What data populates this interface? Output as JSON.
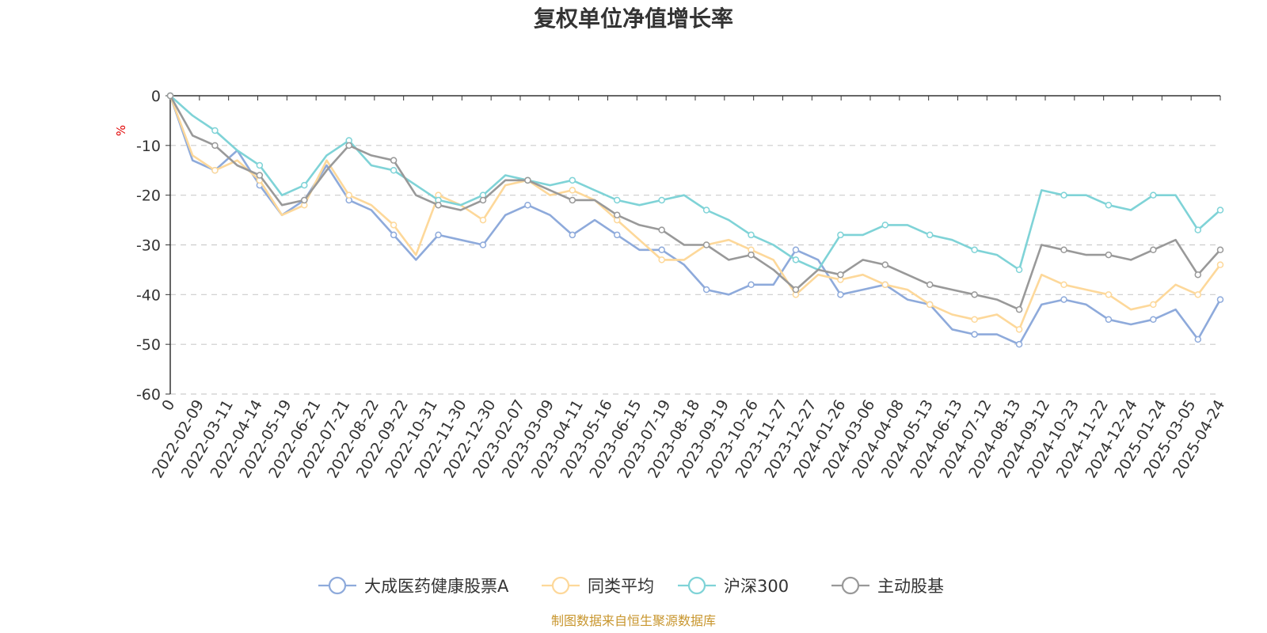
{
  "chart_data": {
    "type": "line",
    "title": "复权单位净值增长率",
    "ylabel": "%",
    "ylim": [
      -60,
      0
    ],
    "yticks": [
      0,
      -10,
      -20,
      -30,
      -40,
      -50,
      -60
    ],
    "x_first_label": "0",
    "x_labels": [
      "2022-02-09",
      "2022-03-11",
      "2022-04-14",
      "2022-05-19",
      "2022-06-21",
      "2022-07-21",
      "2022-08-22",
      "2022-09-22",
      "2022-10-31",
      "2022-11-30",
      "2022-12-30",
      "2023-02-07",
      "2023-03-09",
      "2023-04-11",
      "2023-05-16",
      "2023-06-15",
      "2023-07-19",
      "2023-08-18",
      "2023-09-19",
      "2023-10-26",
      "2023-11-27",
      "2023-12-27",
      "2024-01-26",
      "2024-03-06",
      "2024-04-08",
      "2024-05-13",
      "2024-06-13",
      "2024-07-12",
      "2024-08-13",
      "2024-09-12",
      "2024-10-23",
      "2024-11-22",
      "2024-12-24",
      "2025-01-24",
      "2025-03-05",
      "2025-04-24"
    ],
    "grid": true,
    "legend_position": "bottom",
    "series": [
      {
        "name": "大成医药健康股票A",
        "color": "#8eaadb",
        "values": [
          0,
          -13,
          -15,
          -11,
          -18,
          -24,
          -21,
          -14,
          -21,
          -23,
          -28,
          -33,
          -28,
          -29,
          -30,
          -24,
          -22,
          -24,
          -28,
          -25,
          -28,
          -31,
          -31,
          -34,
          -39,
          -40,
          -38,
          -38,
          -31,
          -33,
          -40,
          -39,
          -38,
          -41,
          -42,
          -47,
          -48,
          -48,
          -50,
          -42,
          -41,
          -42,
          -45,
          -46,
          -45,
          -43,
          -49,
          -41
        ]
      },
      {
        "name": "同类平均",
        "color": "#fdd89a",
        "values": [
          0,
          -12,
          -15,
          -13,
          -17,
          -24,
          -22,
          -13,
          -20,
          -22,
          -26,
          -32,
          -20,
          -22,
          -25,
          -18,
          -17,
          -20,
          -19,
          -21,
          -25,
          -29,
          -33,
          -33,
          -30,
          -29,
          -31,
          -33,
          -40,
          -36,
          -37,
          -36,
          -38,
          -39,
          -42,
          -44,
          -45,
          -44,
          -47,
          -36,
          -38,
          -39,
          -40,
          -43,
          -42,
          -38,
          -40,
          -34
        ]
      },
      {
        "name": "沪深300",
        "color": "#7fd3d7",
        "values": [
          0,
          -4,
          -7,
          -11,
          -14,
          -20,
          -18,
          -12,
          -9,
          -14,
          -15,
          -18,
          -21,
          -22,
          -20,
          -16,
          -17,
          -18,
          -17,
          -19,
          -21,
          -22,
          -21,
          -20,
          -23,
          -25,
          -28,
          -30,
          -33,
          -35,
          -28,
          -28,
          -26,
          -26,
          -28,
          -29,
          -31,
          -32,
          -35,
          -19,
          -20,
          -20,
          -22,
          -23,
          -20,
          -20,
          -27,
          -23
        ]
      },
      {
        "name": "主动股基",
        "color": "#999999",
        "values": [
          0,
          -8,
          -10,
          -14,
          -16,
          -22,
          -21,
          -15,
          -10,
          -12,
          -13,
          -20,
          -22,
          -23,
          -21,
          -17,
          -17,
          -19,
          -21,
          -21,
          -24,
          -26,
          -27,
          -30,
          -30,
          -33,
          -32,
          -35,
          -39,
          -35,
          -36,
          -33,
          -34,
          -36,
          -38,
          -39,
          -40,
          -41,
          -43,
          -30,
          -31,
          -32,
          -32,
          -33,
          -31,
          -29,
          -36,
          -31
        ]
      }
    ]
  },
  "source_note": "制图数据来自恒生聚源数据库"
}
